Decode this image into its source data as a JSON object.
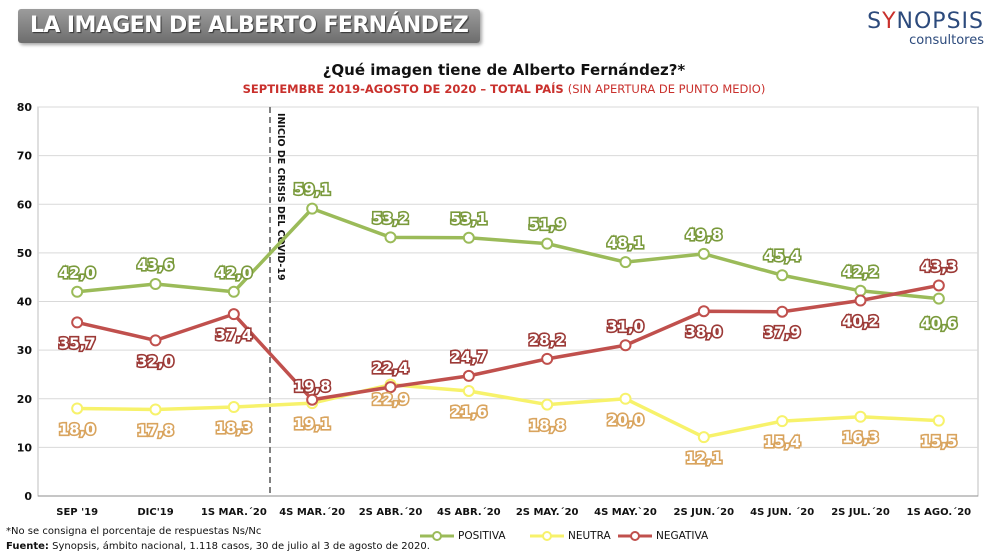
{
  "header": {
    "title": "LA IMAGEN DE ALBERTO FERNÁNDEZ",
    "logo_main_a": "S",
    "logo_main_accent": "Y",
    "logo_main_b": "NOPSIS",
    "logo_sub": "consultores"
  },
  "chart_heading": {
    "question": "¿Qué imagen tiene de Alberto Fernández?*",
    "subtitle_main": "SEPTIEMBRE 2019-AGOSTO DE 2020 – TOTAL PAÍS",
    "subtitle_note": "(SIN APERTURA DE PUNTO MEDIO)"
  },
  "footer": {
    "note": "*No se consigna el porcentaje de respuestas Ns/Nc",
    "source_label": "Fuente:",
    "source_text": "Synopsis, ámbito nacional, 1.118 casos, 30 de julio al 3 de agosto de 2020."
  },
  "legend": [
    "POSITIVA",
    "NEUTRA",
    "NEGATIVA"
  ],
  "colors": {
    "positiva": "#9bbb59",
    "neutra": "#f7f26b",
    "negativa": "#c0504d",
    "label_positiva": "#7a9a3c",
    "label_neutra": "#d9a45e",
    "label_negativa": "#9c3a37"
  },
  "chart_data": {
    "type": "line",
    "categories": [
      "SEP '19",
      "DIC'19",
      "1S MAR.´20",
      "4S MAR.´20",
      "2S ABR.´20",
      "4S ABR.´20",
      "2S MAY.´20",
      "4S MAY.`20",
      "2S JUN.´20",
      "4S JUN. ´20",
      "2S JUL.´20",
      "1S AGO.´20"
    ],
    "series": [
      {
        "name": "POSITIVA",
        "values": [
          42.0,
          43.6,
          42.0,
          59.1,
          53.2,
          53.1,
          51.9,
          48.1,
          49.8,
          45.4,
          42.2,
          40.6
        ],
        "labels": [
          "42,0",
          "43,6",
          "42,0",
          "59,1",
          "53,2",
          "53,1",
          "51,9",
          "48,1",
          "49,8",
          "45,4",
          "42,2",
          "40,6"
        ]
      },
      {
        "name": "NEUTRA",
        "values": [
          18.0,
          17.8,
          18.3,
          19.1,
          22.9,
          21.6,
          18.8,
          20.0,
          12.1,
          15.4,
          16.3,
          15.5
        ],
        "labels": [
          "18,0",
          "17,8",
          "18,3",
          "19,1",
          "22,9",
          "21,6",
          "18,8",
          "20,0",
          "12,1",
          "15,4",
          "16,3",
          "15,5"
        ]
      },
      {
        "name": "NEGATIVA",
        "values": [
          35.7,
          32.0,
          37.4,
          19.8,
          22.4,
          24.7,
          28.2,
          31.0,
          38.0,
          37.9,
          40.2,
          43.3
        ],
        "labels": [
          "35,7",
          "32,0",
          "37,4",
          "19,8",
          "22,4",
          "24,7",
          "28,2",
          "31,0",
          "38,0",
          "37,9",
          "40,2",
          "43,3"
        ]
      }
    ],
    "ylim": [
      0,
      80
    ],
    "yticks": [
      0,
      10,
      20,
      30,
      40,
      50,
      60,
      70,
      80
    ],
    "grid": true,
    "annotation": "INICIO DE CRISIS DEL COVID-19",
    "legend_position": "bottom"
  }
}
